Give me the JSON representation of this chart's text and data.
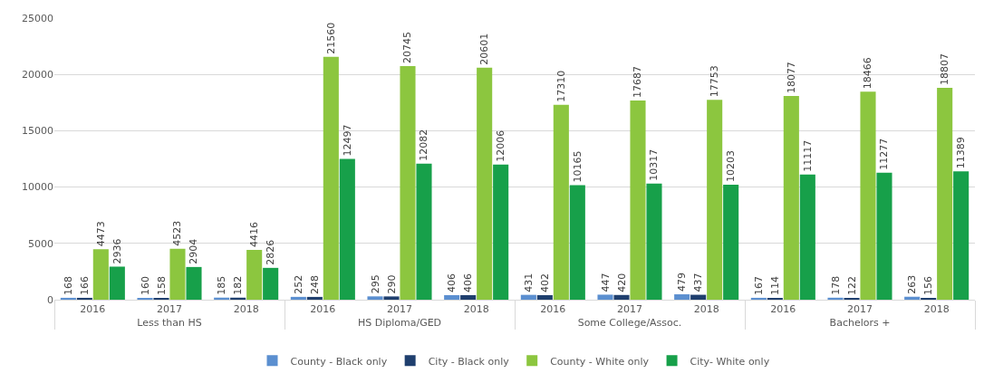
{
  "chart_data": {
    "type": "bar",
    "categories": [
      "2016",
      "2017",
      "2018",
      "2016",
      "2017",
      "2018",
      "2016",
      "2017",
      "2018",
      "2016",
      "2017",
      "2018"
    ],
    "annotations": [
      "Less than HS",
      "HS Diploma/GED",
      "Some College/Assoc.",
      "Bachelors +"
    ],
    "series": [
      {
        "name": "County - Black only",
        "color": "#5b8fd0",
        "values": [
          168,
          160,
          185,
          252,
          295,
          406,
          431,
          447,
          479,
          167,
          178,
          263
        ]
      },
      {
        "name": "City - Black only",
        "color": "#1f3f6e",
        "values": [
          166,
          158,
          182,
          248,
          290,
          406,
          402,
          420,
          437,
          114,
          122,
          156
        ]
      },
      {
        "name": "County - White only",
        "color": "#8cc63f",
        "values": [
          4473,
          4523,
          4416,
          21560,
          20745,
          20601,
          17310,
          17687,
          17753,
          18077,
          18466,
          18807
        ]
      },
      {
        "name": "City- White only",
        "color": "#17a04a",
        "values": [
          2936,
          2904,
          2826,
          12497,
          12082,
          12006,
          10165,
          10317,
          10203,
          11117,
          11277,
          11389
        ]
      }
    ],
    "ylim": [
      0,
      25000
    ],
    "yticks": [
      0,
      5000,
      10000,
      15000,
      20000,
      25000
    ],
    "grid": "y",
    "legend": "bottom",
    "data_labels": true
  }
}
